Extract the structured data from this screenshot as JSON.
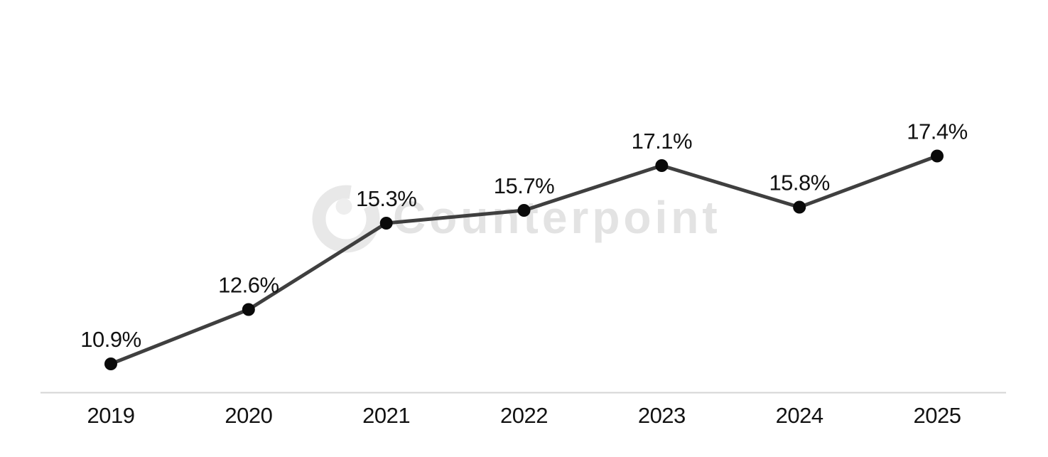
{
  "watermark": {
    "text": "Counterpoint",
    "text_color": "#e3e3e3",
    "ring_color": "#e8e8e8",
    "dot_color": "#eeeeee"
  },
  "chart_data": {
    "type": "line",
    "title": "",
    "xlabel": "",
    "ylabel": "",
    "categories": [
      "2019",
      "2020",
      "2021",
      "2022",
      "2023",
      "2024",
      "2025"
    ],
    "values": [
      10.9,
      12.6,
      15.3,
      15.7,
      17.1,
      15.8,
      17.4
    ],
    "data_labels": [
      "10.9%",
      "12.6%",
      "15.3%",
      "15.7%",
      "17.1%",
      "15.8%",
      "17.4%"
    ],
    "value_suffix": "%",
    "ylim": [
      10,
      20
    ],
    "grid": false,
    "legend": null,
    "colors": {
      "line": "#3f3f3f",
      "marker": "#0a0a0a",
      "data_label": "#121212",
      "tick_label": "#121212",
      "axis_line": "#d5d5d5",
      "background": "#ffffff"
    }
  }
}
